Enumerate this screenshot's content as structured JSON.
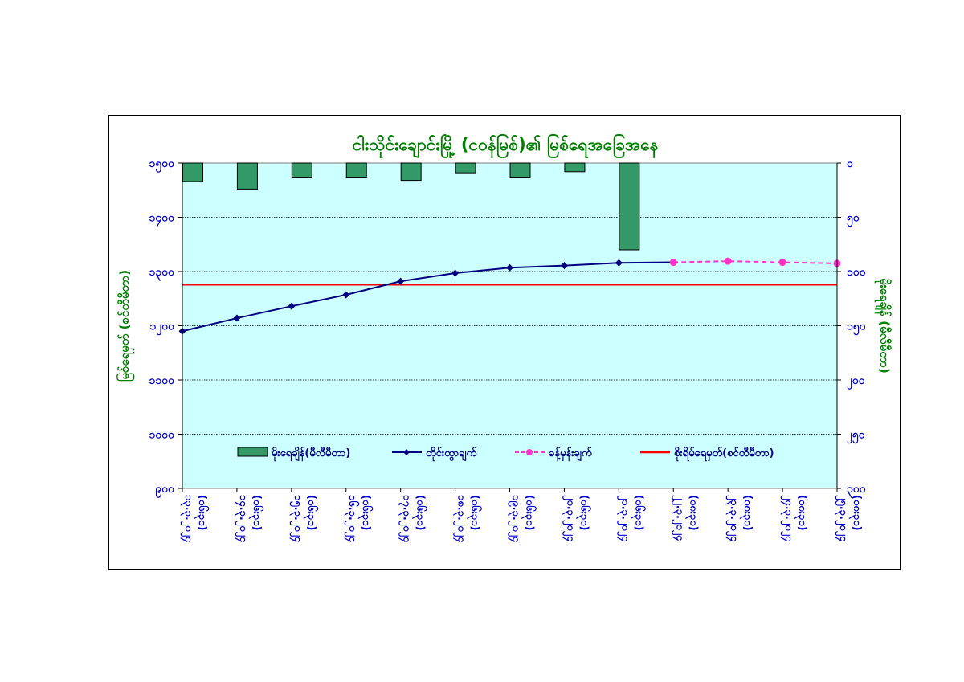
{
  "chart_data": {
    "type": "bar+line",
    "title": "ငါးသိုင်းချောင်းမြို့ (ငဝန်မြစ်)၏ မြစ်ရေအခြေအနေ",
    "ylabel_left": "မြစ်ရေမှတ် (စင်တီမီတာ)",
    "ylabel_right": "မိုးရေချိန် (မီလီမီတာ)",
    "y_left": {
      "lim": [
        900,
        1500
      ],
      "ticks": [
        900,
        1000,
        1100,
        1200,
        1300,
        1400,
        1500
      ],
      "labels": [
        "၉၀၀",
        "၁၀၀၀",
        "၁၁၀၀",
        "၁၂၀၀",
        "၁၃၀၀",
        "၁၄၀၀",
        "၁၅၀၀"
      ]
    },
    "y_right": {
      "lim": [
        0,
        300
      ],
      "inverted": true,
      "ticks": [
        0,
        50,
        100,
        150,
        200,
        250,
        300
      ],
      "labels": [
        "၀",
        "၅၀",
        "၁၀၀",
        "၁၅၀",
        "၂၀၀",
        "၂၅၀",
        "၃၀၀"
      ]
    },
    "categories": [
      [
        "၁၃.၃.၂၀၂၄",
        "(၀၆း၃၀)"
      ],
      [
        "၁၄.၃.၂၀၂၄",
        "(၀၆း၃၀)"
      ],
      [
        "၁၅.၃.၂၀၂၄",
        "(၀၆း၃၀)"
      ],
      [
        "၁၆.၃.၂၀၂၄",
        "(၀၆း၃၀)"
      ],
      [
        "၁၇.၃.၂၀၂၄",
        "(၀၆း၃၀)"
      ],
      [
        "၁၈.၃.၂၀၂၄",
        "(၀၆း၃၀)"
      ],
      [
        "၁၉.၃.၂၀၂၄",
        "(၀၆း၃၀)"
      ],
      [
        "၂၀.၃.၂၀၂၄",
        "(၀၆း၃၀)"
      ],
      [
        "၂၁.၃.၂၀၂၄",
        "(၀၆း၃၀)"
      ],
      [
        "၂၂.၃.၂၀၂၄",
        "(၀၈း၃၀)"
      ],
      [
        "၂၃.၃.၂၀၂၄",
        "(၀၈း၃၀)"
      ],
      [
        "၂၄.၃.၂၀၂၄",
        "(၀၈း၃၀)"
      ],
      [
        "၂၅.၃.၂၀၂၄",
        "(၀၈း၃၀)"
      ]
    ],
    "series": [
      {
        "name": "မိုးရေချိန်(မီလီမီတာ)",
        "kind": "bar",
        "axis": "right",
        "color": "#339966",
        "values": [
          17,
          24,
          13,
          13,
          16,
          9,
          13,
          8,
          80,
          null,
          null,
          null,
          null
        ]
      },
      {
        "name": "တိုင်းထွာချက်",
        "kind": "line",
        "axis": "left",
        "color": "#000080",
        "values": [
          1190,
          1214,
          1236,
          1257,
          1282,
          1297,
          1307,
          1311,
          1316,
          1317,
          null,
          null,
          null
        ]
      },
      {
        "name": "ခန့်မှန်းချက်",
        "kind": "dashed-line",
        "axis": "left",
        "color": "#ff33cc",
        "values": [
          null,
          null,
          null,
          null,
          null,
          null,
          null,
          null,
          null,
          1317,
          1319,
          1317,
          1315
        ]
      },
      {
        "name": "စိုးရိမ်ရေမှတ်(စင်တီမီတာ)",
        "kind": "hline",
        "axis": "left",
        "color": "#ff0000",
        "value": 1276
      }
    ],
    "grid": true,
    "legend_position": "inside-bottom",
    "plot_background": "#ccffff"
  }
}
